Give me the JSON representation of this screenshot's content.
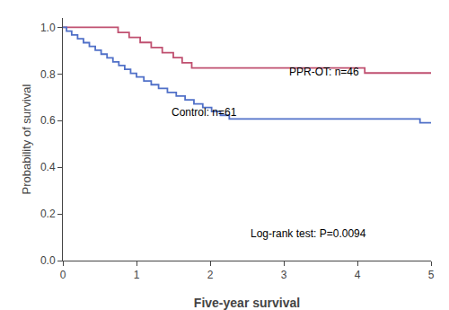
{
  "chart_data": {
    "type": "step",
    "xlabel": "Five-year survival",
    "ylabel": "Probability of survival",
    "xlim": [
      0,
      5
    ],
    "ylim": [
      0.0,
      1.04
    ],
    "xticks": [
      0,
      1,
      2,
      3,
      4,
      5
    ],
    "yticks": [
      {
        "value": 0.0,
        "label": "0.0"
      },
      0.2,
      0.4,
      0.6,
      0.8,
      {
        "value": 1.0,
        "label": "1.0"
      }
    ],
    "grid": false,
    "series": [
      {
        "color": "#C05070",
        "x": [
          0.0,
          0.55,
          0.75,
          0.9,
          1.05,
          1.2,
          1.35,
          1.5,
          1.62,
          1.75,
          1.88,
          2.0,
          2.12,
          2.25,
          2.38,
          2.5,
          2.6,
          2.72,
          2.85,
          2.95,
          3.08,
          3.2,
          3.32,
          3.45,
          3.58,
          3.7,
          3.82,
          3.95,
          4.1,
          4.5,
          5.0
        ],
        "values": [
          1.0,
          1.0,
          0.978,
          0.957,
          0.935,
          0.913,
          0.891,
          0.87,
          0.848,
          0.826,
          0.826,
          0.826,
          0.826,
          0.826,
          0.826,
          0.826,
          0.826,
          0.826,
          0.826,
          0.826,
          0.826,
          0.826,
          0.826,
          0.826,
          0.826,
          0.826,
          0.826,
          0.826,
          0.804,
          0.804,
          0.804
        ]
      },
      {
        "color": "#5070C8",
        "x": [
          0.0,
          0.05,
          0.12,
          0.2,
          0.28,
          0.36,
          0.44,
          0.52,
          0.6,
          0.68,
          0.76,
          0.84,
          0.92,
          1.0,
          1.1,
          1.2,
          1.3,
          1.42,
          1.54,
          1.66,
          1.78,
          1.9,
          2.02,
          2.14,
          2.26,
          2.38,
          2.5,
          2.62,
          2.74,
          2.86,
          2.98,
          3.1,
          3.18,
          3.28,
          3.38,
          3.48,
          3.58,
          3.68,
          3.78,
          3.88,
          4.85,
          5.0
        ],
        "values": [
          1.0,
          0.984,
          0.967,
          0.951,
          0.934,
          0.918,
          0.902,
          0.885,
          0.869,
          0.852,
          0.836,
          0.82,
          0.803,
          0.787,
          0.77,
          0.754,
          0.738,
          0.721,
          0.705,
          0.689,
          0.672,
          0.656,
          0.639,
          0.623,
          0.607,
          0.607,
          0.607,
          0.607,
          0.607,
          0.607,
          0.607,
          0.607,
          0.607,
          0.607,
          0.607,
          0.607,
          0.607,
          0.607,
          0.607,
          0.607,
          0.591,
          0.591
        ]
      }
    ],
    "annotations": [
      {
        "text": "PPR-OT: n=46",
        "x": 3.05,
        "y": 0.81
      },
      {
        "text": "Control: n=61",
        "x": 1.45,
        "y": 0.635
      },
      {
        "text": "Log-rank test: P=0.0094",
        "x": 2.52,
        "y": 0.115
      }
    ]
  }
}
